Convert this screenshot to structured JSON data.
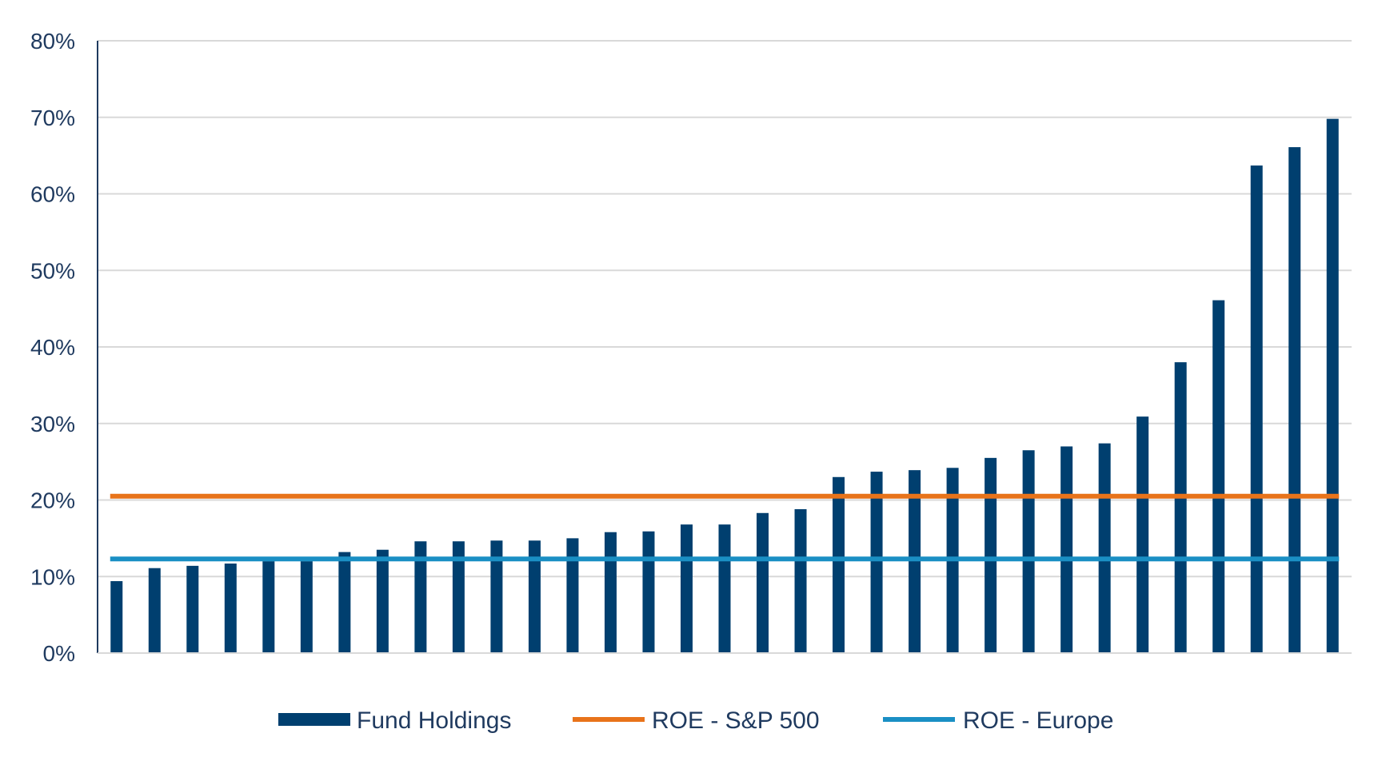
{
  "chart_data": {
    "type": "bar",
    "title": "",
    "xlabel": "",
    "ylabel": "",
    "ylim": [
      0,
      80
    ],
    "y_ticks": [
      "0%",
      "10%",
      "20%",
      "30%",
      "40%",
      "50%",
      "60%",
      "70%",
      "80%"
    ],
    "y_tick_values": [
      0,
      10,
      20,
      30,
      40,
      50,
      60,
      70,
      80
    ],
    "grid": true,
    "legend_position": "bottom",
    "series": [
      {
        "name": "Fund Holdings",
        "type": "bar",
        "color": "#003f6f",
        "values": [
          9.4,
          11.1,
          11.4,
          11.7,
          12.0,
          12.0,
          13.2,
          13.5,
          14.6,
          14.6,
          14.7,
          14.7,
          15.0,
          15.8,
          15.9,
          16.8,
          16.8,
          18.3,
          18.8,
          23.0,
          23.7,
          23.9,
          24.2,
          25.5,
          26.5,
          27.0,
          27.4,
          30.9,
          38.0,
          46.1,
          63.7,
          66.1,
          69.8
        ]
      },
      {
        "name": "ROE - S&P 500",
        "type": "line",
        "color": "#e8731a",
        "value": 20.5
      },
      {
        "name": "ROE - Europe",
        "type": "line",
        "color": "#1a8fc4",
        "value": 12.3
      }
    ],
    "axis_color": "#1f3a5f",
    "grid_color": "#d9d9d9",
    "label_color": "#1f3a5f"
  }
}
